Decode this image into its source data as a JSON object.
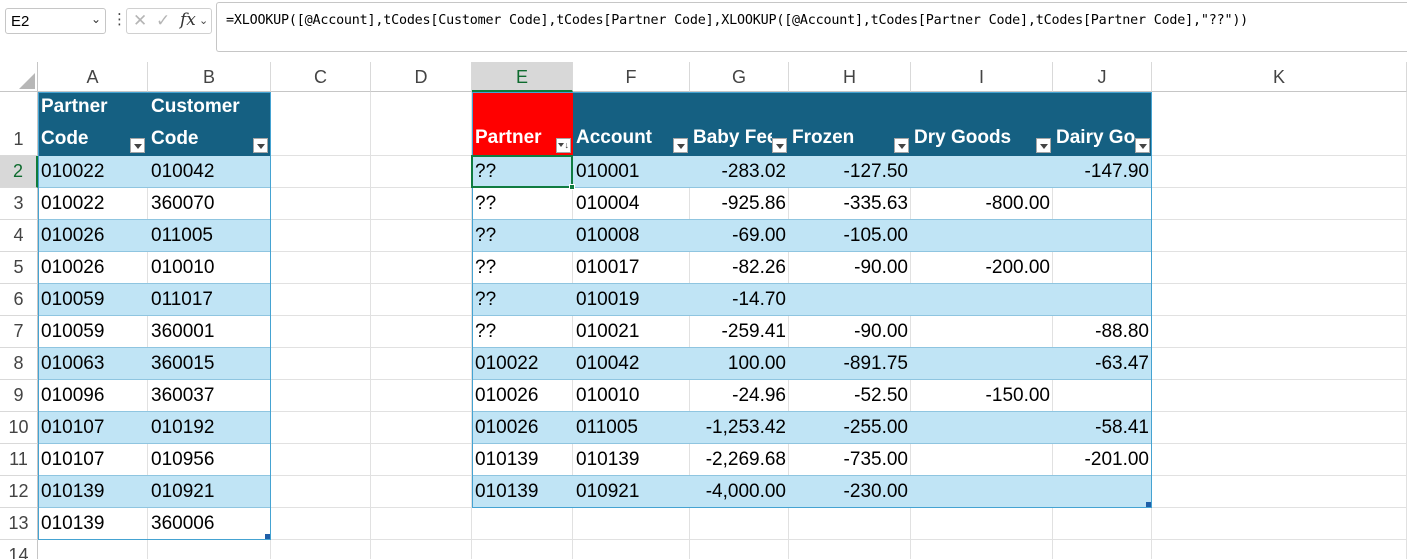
{
  "formula_bar": {
    "name_box": "E2",
    "formula": "=XLOOKUP([@Account],tCodes[Customer Code],tCodes[Partner Code],XLOOKUP([@Account],tCodes[Partner Code],tCodes[Partner Code],\"??\"))"
  },
  "columns": [
    "A",
    "B",
    "C",
    "D",
    "E",
    "F",
    "G",
    "H",
    "I",
    "J",
    "K"
  ],
  "rows": [
    "1",
    "2",
    "3",
    "4",
    "5",
    "6",
    "7",
    "8",
    "9",
    "10",
    "11",
    "12",
    "13",
    "14"
  ],
  "selected": {
    "column": "E",
    "row": "2"
  },
  "codes_table": {
    "headers": [
      {
        "line1": "Partner",
        "line2": "Code"
      },
      {
        "line1": "Customer",
        "line2": "Code"
      }
    ],
    "rows": [
      [
        "010022",
        "010042"
      ],
      [
        "010022",
        "360070"
      ],
      [
        "010026",
        "011005"
      ],
      [
        "010026",
        "010010"
      ],
      [
        "010059",
        "011017"
      ],
      [
        "010059",
        "360001"
      ],
      [
        "010063",
        "360015"
      ],
      [
        "010096",
        "360037"
      ],
      [
        "010107",
        "010192"
      ],
      [
        "010107",
        "010956"
      ],
      [
        "010139",
        "010921"
      ],
      [
        "010139",
        "360006"
      ]
    ]
  },
  "main_table": {
    "headers": [
      "Partner",
      "Account",
      "Baby Feed",
      "Frozen",
      "Dry Goods",
      "Dairy Goods"
    ],
    "rows": [
      [
        "??",
        "010001",
        "-283.02",
        "-127.50",
        "",
        "-147.90"
      ],
      [
        "??",
        "010004",
        "-925.86",
        "-335.63",
        "-800.00",
        ""
      ],
      [
        "??",
        "010008",
        "-69.00",
        "-105.00",
        "",
        ""
      ],
      [
        "??",
        "010017",
        "-82.26",
        "-90.00",
        "-200.00",
        ""
      ],
      [
        "??",
        "010019",
        "-14.70",
        "",
        "",
        ""
      ],
      [
        "??",
        "010021",
        "-259.41",
        "-90.00",
        "",
        "-88.80"
      ],
      [
        "010022",
        "010042",
        "100.00",
        "-891.75",
        "",
        "-63.47"
      ],
      [
        "010026",
        "010010",
        "-24.96",
        "-52.50",
        "-150.00",
        ""
      ],
      [
        "010026",
        "011005",
        "-1,253.42",
        "-255.00",
        "",
        "-58.41"
      ],
      [
        "010139",
        "010139",
        "-2,269.68",
        "-735.00",
        "",
        "-201.00"
      ],
      [
        "010139",
        "010921",
        "-4,000.00",
        "-230.00",
        "",
        ""
      ]
    ]
  },
  "colors": {
    "table_header": "#156082",
    "band": "#c0e4f5",
    "flag_header": "#ff0000",
    "selection": "#107c41"
  }
}
